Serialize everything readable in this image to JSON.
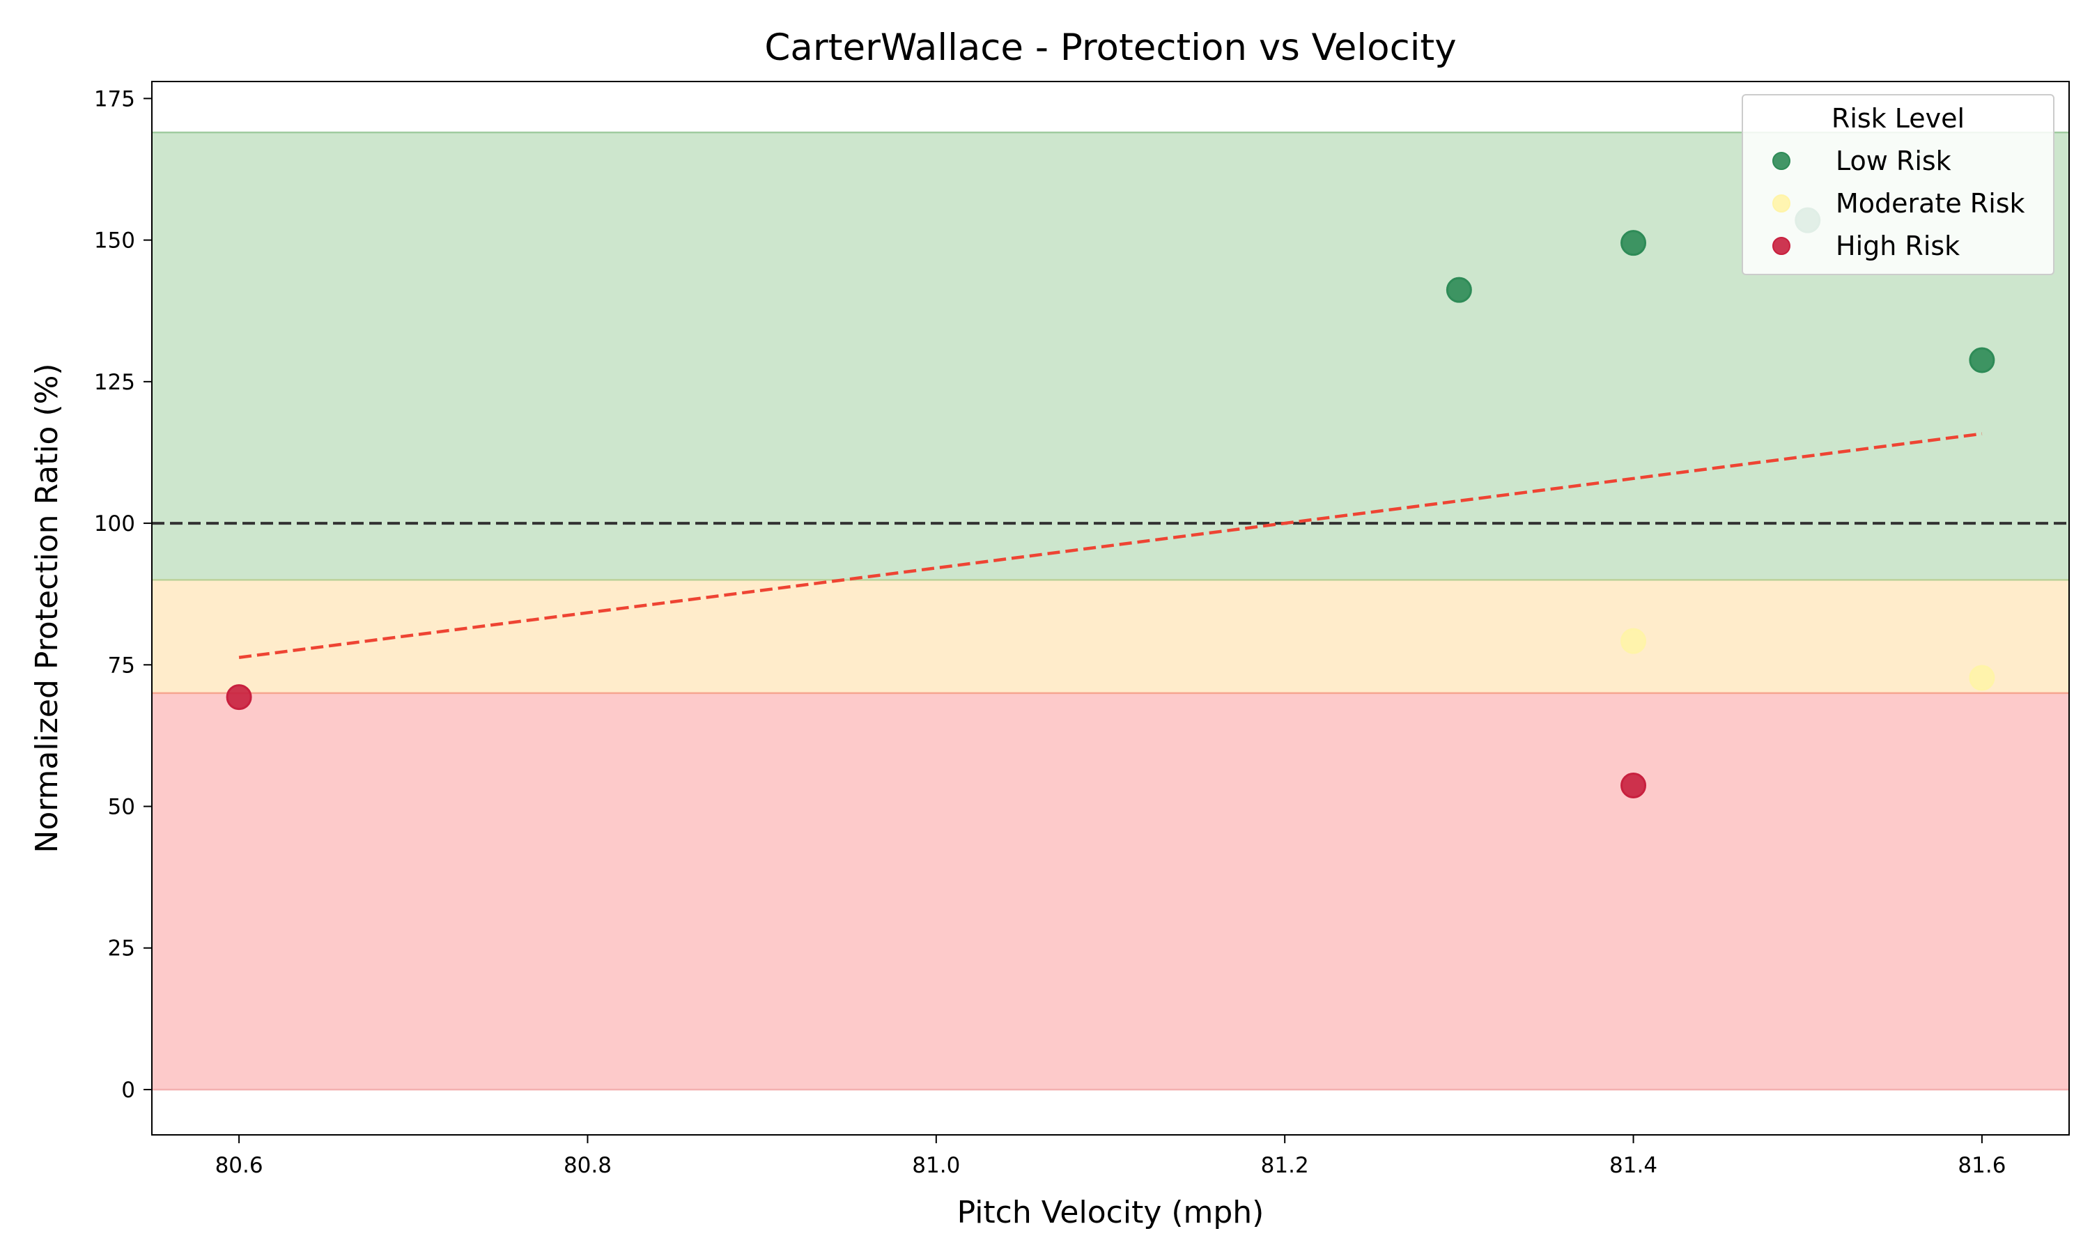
{
  "chart_data": {
    "type": "scatter",
    "title": "CarterWallace - Protection vs Velocity",
    "xlabel": "Pitch Velocity (mph)",
    "ylabel": "Normalized Protection Ratio (%)",
    "xlim": [
      80.55,
      81.65
    ],
    "ylim": [
      -8,
      178
    ],
    "x_ticks": [
      "80.6",
      "80.8",
      "81.0",
      "81.2",
      "81.4",
      "81.6"
    ],
    "y_ticks": [
      "0",
      "25",
      "50",
      "75",
      "100",
      "125",
      "150",
      "175"
    ],
    "bands": [
      {
        "name": "High Risk zone",
        "y0": 0,
        "y1": 70,
        "color": "#fdcaca"
      },
      {
        "name": "Moderate Risk zone",
        "y0": 70,
        "y1": 90,
        "color": "#ffeccb"
      },
      {
        "name": "Low Risk zone",
        "y0": 90,
        "y1": 169,
        "color": "#cde6cd"
      }
    ],
    "reference_line": {
      "y": 100,
      "color": "#333333"
    },
    "trend_line": {
      "x": [
        80.6,
        81.6
      ],
      "y": [
        76.3,
        115.8
      ],
      "color": "#ee4433"
    },
    "legend": {
      "title": "Risk Level",
      "placement": "upper right"
    },
    "series": [
      {
        "name": "Low Risk",
        "color": "#2e8b57",
        "x": [
          81.3,
          81.4,
          81.5,
          81.6
        ],
        "y": [
          141.2,
          149.5,
          153.5,
          128.8
        ]
      },
      {
        "name": "Moderate Risk",
        "color": "#fff4a8",
        "x": [
          81.4,
          81.6
        ],
        "y": [
          79.2,
          72.7
        ]
      },
      {
        "name": "High Risk",
        "color": "#c8203e",
        "x": [
          80.6,
          81.4
        ],
        "y": [
          69.3,
          53.7
        ]
      }
    ]
  }
}
